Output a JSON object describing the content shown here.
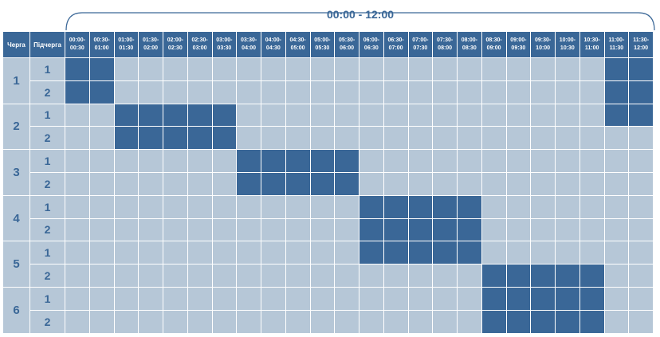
{
  "range_title": "00:00 - 12:00",
  "headers": {
    "queue": "Черга",
    "subqueue": "Підчерга"
  },
  "time_slots": [
    {
      "from": "00:00-",
      "to": "00:30"
    },
    {
      "from": "00:30-",
      "to": "01:00"
    },
    {
      "from": "01:00-",
      "to": "01:30"
    },
    {
      "from": "01:30-",
      "to": "02:00"
    },
    {
      "from": "02:00-",
      "to": "02:30"
    },
    {
      "from": "02:30-",
      "to": "03:00"
    },
    {
      "from": "03:00-",
      "to": "03:30"
    },
    {
      "from": "03:30-",
      "to": "04:00"
    },
    {
      "from": "04:00-",
      "to": "04:30"
    },
    {
      "from": "04:30-",
      "to": "05:00"
    },
    {
      "from": "05:00-",
      "to": "05:30"
    },
    {
      "from": "05:30-",
      "to": "06:00"
    },
    {
      "from": "06:00-",
      "to": "06:30"
    },
    {
      "from": "06:30-",
      "to": "07:00"
    },
    {
      "from": "07:00-",
      "to": "07:30"
    },
    {
      "from": "07:30-",
      "to": "08:00"
    },
    {
      "from": "08:00-",
      "to": "08:30"
    },
    {
      "from": "08:30-",
      "to": "09:00"
    },
    {
      "from": "09:00-",
      "to": "09:30"
    },
    {
      "from": "09:30-",
      "to": "10:00"
    },
    {
      "from": "10:00-",
      "to": "10:30"
    },
    {
      "from": "10:30-",
      "to": "11:00"
    },
    {
      "from": "11:00-",
      "to": "11:30"
    },
    {
      "from": "11:30-",
      "to": "12:00"
    }
  ],
  "groups": [
    {
      "label": "1",
      "subgroups": [
        {
          "label": "1",
          "on": [
            0,
            1,
            22,
            23
          ]
        },
        {
          "label": "2",
          "on": [
            0,
            1,
            22,
            23
          ]
        }
      ]
    },
    {
      "label": "2",
      "subgroups": [
        {
          "label": "1",
          "on": [
            2,
            3,
            4,
            5,
            6,
            22,
            23
          ]
        },
        {
          "label": "2",
          "on": [
            2,
            3,
            4,
            5,
            6
          ]
        }
      ]
    },
    {
      "label": "3",
      "subgroups": [
        {
          "label": "1",
          "on": [
            7,
            8,
            9,
            10,
            11
          ]
        },
        {
          "label": "2",
          "on": [
            7,
            8,
            9,
            10,
            11
          ]
        }
      ]
    },
    {
      "label": "4",
      "subgroups": [
        {
          "label": "1",
          "on": [
            12,
            13,
            14,
            15,
            16
          ]
        },
        {
          "label": "2",
          "on": [
            12,
            13,
            14,
            15,
            16
          ]
        }
      ]
    },
    {
      "label": "5",
      "subgroups": [
        {
          "label": "1",
          "on": [
            12,
            13,
            14,
            15,
            16
          ]
        },
        {
          "label": "2",
          "on": [
            17,
            18,
            19,
            20,
            21
          ]
        }
      ]
    },
    {
      "label": "6",
      "subgroups": [
        {
          "label": "1",
          "on": [
            17,
            18,
            19,
            20,
            21
          ]
        },
        {
          "label": "2",
          "on": [
            17,
            18,
            19,
            20,
            21
          ]
        }
      ]
    }
  ],
  "colors": {
    "active": "#3a6797",
    "inactive": "#b6c7d7",
    "header": "#3a6797",
    "grid": "#ffffff"
  }
}
